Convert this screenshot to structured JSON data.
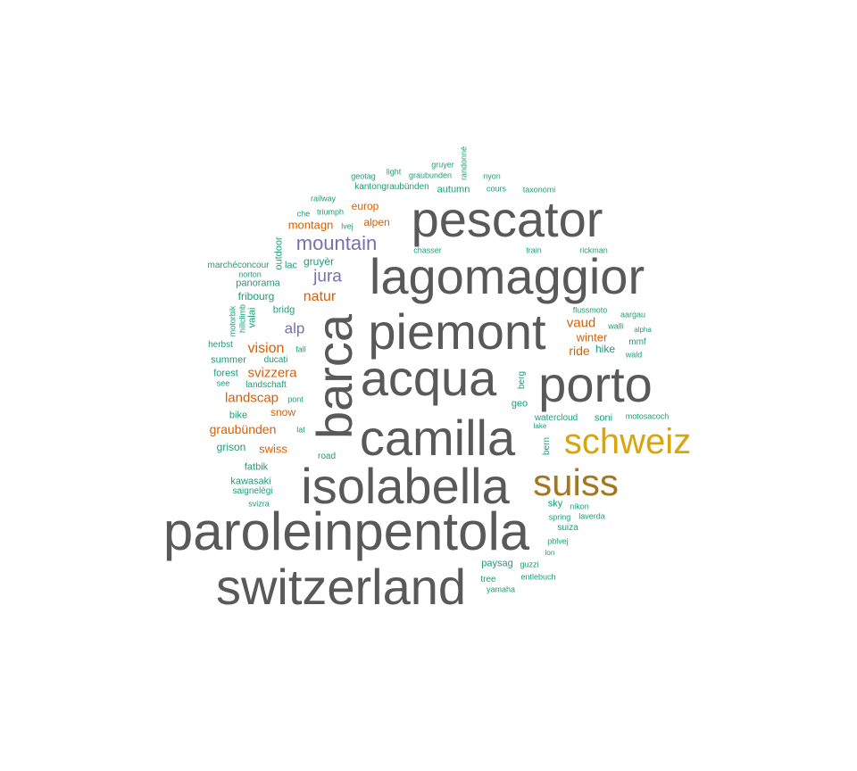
{
  "palette": {
    "gray": "#595959",
    "gold": "#daa50a",
    "bronze": "#a6761d",
    "purple": "#7570b3",
    "orange": "#d95f02",
    "teal": "#1b9e77"
  },
  "words": [
    {
      "text": "paroleinpentola",
      "color": "gray"
    },
    {
      "text": "switzerland",
      "color": "gray"
    },
    {
      "text": "isolabella",
      "color": "gray"
    },
    {
      "text": "camilla",
      "color": "gray"
    },
    {
      "text": "acqua",
      "color": "gray"
    },
    {
      "text": "porto",
      "color": "gray"
    },
    {
      "text": "piemont",
      "color": "gray"
    },
    {
      "text": "lagomaggior",
      "color": "gray"
    },
    {
      "text": "pescator",
      "color": "gray"
    },
    {
      "text": "barca",
      "color": "gray"
    },
    {
      "text": "schweiz",
      "color": "gold"
    },
    {
      "text": "suiss",
      "color": "bronze"
    },
    {
      "text": "mountain",
      "color": "purple"
    },
    {
      "text": "jura",
      "color": "purple"
    },
    {
      "text": "alp",
      "color": "purple"
    },
    {
      "text": "natur",
      "color": "orange"
    },
    {
      "text": "vision",
      "color": "orange"
    },
    {
      "text": "svizzera",
      "color": "orange"
    },
    {
      "text": "landscap",
      "color": "orange"
    },
    {
      "text": "graubünden",
      "color": "orange"
    },
    {
      "text": "swiss",
      "color": "orange"
    },
    {
      "text": "snow",
      "color": "orange"
    },
    {
      "text": "montagn",
      "color": "orange"
    },
    {
      "text": "alpen",
      "color": "orange"
    },
    {
      "text": "europ",
      "color": "orange"
    },
    {
      "text": "vaud",
      "color": "orange"
    },
    {
      "text": "winter",
      "color": "orange"
    },
    {
      "text": "ride",
      "color": "orange"
    },
    {
      "text": "hike",
      "color": "teal"
    },
    {
      "text": "mmf",
      "color": "teal"
    },
    {
      "text": "wald",
      "color": "teal"
    },
    {
      "text": "alpha",
      "color": "teal"
    },
    {
      "text": "walli",
      "color": "teal"
    },
    {
      "text": "aargau",
      "color": "teal"
    },
    {
      "text": "flussmoto",
      "color": "teal"
    },
    {
      "text": "berg",
      "color": "teal"
    },
    {
      "text": "geo",
      "color": "teal"
    },
    {
      "text": "watercloud",
      "color": "teal"
    },
    {
      "text": "lake",
      "color": "teal"
    },
    {
      "text": "soni",
      "color": "teal"
    },
    {
      "text": "motosacoch",
      "color": "teal"
    },
    {
      "text": "bern",
      "color": "teal"
    },
    {
      "text": "sky",
      "color": "teal"
    },
    {
      "text": "nikon",
      "color": "teal"
    },
    {
      "text": "spring",
      "color": "teal"
    },
    {
      "text": "laverda",
      "color": "teal"
    },
    {
      "text": "suiza",
      "color": "teal"
    },
    {
      "text": "pblvej",
      "color": "teal"
    },
    {
      "text": "lon",
      "color": "teal"
    },
    {
      "text": "paysag",
      "color": "teal"
    },
    {
      "text": "guzzi",
      "color": "teal"
    },
    {
      "text": "tree",
      "color": "teal"
    },
    {
      "text": "entlebuch",
      "color": "teal"
    },
    {
      "text": "yamaha",
      "color": "teal"
    },
    {
      "text": "road",
      "color": "teal"
    },
    {
      "text": "lat",
      "color": "teal"
    },
    {
      "text": "pont",
      "color": "teal"
    },
    {
      "text": "bike",
      "color": "teal"
    },
    {
      "text": "grison",
      "color": "teal"
    },
    {
      "text": "fatbik",
      "color": "teal"
    },
    {
      "text": "kawasaki",
      "color": "teal"
    },
    {
      "text": "saignelégi",
      "color": "teal"
    },
    {
      "text": "svizra",
      "color": "teal"
    },
    {
      "text": "forest",
      "color": "teal"
    },
    {
      "text": "see",
      "color": "teal"
    },
    {
      "text": "landschaft",
      "color": "teal"
    },
    {
      "text": "summer",
      "color": "teal"
    },
    {
      "text": "ducati",
      "color": "teal"
    },
    {
      "text": "herbst",
      "color": "teal"
    },
    {
      "text": "fall",
      "color": "teal"
    },
    {
      "text": "bridg",
      "color": "teal"
    },
    {
      "text": "fribourg",
      "color": "teal"
    },
    {
      "text": "panorama",
      "color": "teal"
    },
    {
      "text": "marchéconcour",
      "color": "teal"
    },
    {
      "text": "norton",
      "color": "teal"
    },
    {
      "text": "gruyèr",
      "color": "teal"
    },
    {
      "text": "lac",
      "color": "teal"
    },
    {
      "text": "outdoor",
      "color": "teal"
    },
    {
      "text": "valai",
      "color": "teal"
    },
    {
      "text": "hillclimb",
      "color": "teal"
    },
    {
      "text": "motorbik",
      "color": "teal"
    },
    {
      "text": "che",
      "color": "teal"
    },
    {
      "text": "triumph",
      "color": "teal"
    },
    {
      "text": "lvej",
      "color": "teal"
    },
    {
      "text": "railway",
      "color": "teal"
    },
    {
      "text": "kantongraubünden",
      "color": "teal"
    },
    {
      "text": "autumn",
      "color": "teal"
    },
    {
      "text": "geotag",
      "color": "teal"
    },
    {
      "text": "light",
      "color": "teal"
    },
    {
      "text": "graubunden",
      "color": "teal"
    },
    {
      "text": "gruyer",
      "color": "teal"
    },
    {
      "text": "randonné",
      "color": "teal"
    },
    {
      "text": "nyon",
      "color": "teal"
    },
    {
      "text": "cours",
      "color": "teal"
    },
    {
      "text": "taxonomi",
      "color": "teal"
    },
    {
      "text": "chasser",
      "color": "teal"
    },
    {
      "text": "train",
      "color": "teal"
    },
    {
      "text": "rickman",
      "color": "teal"
    }
  ]
}
